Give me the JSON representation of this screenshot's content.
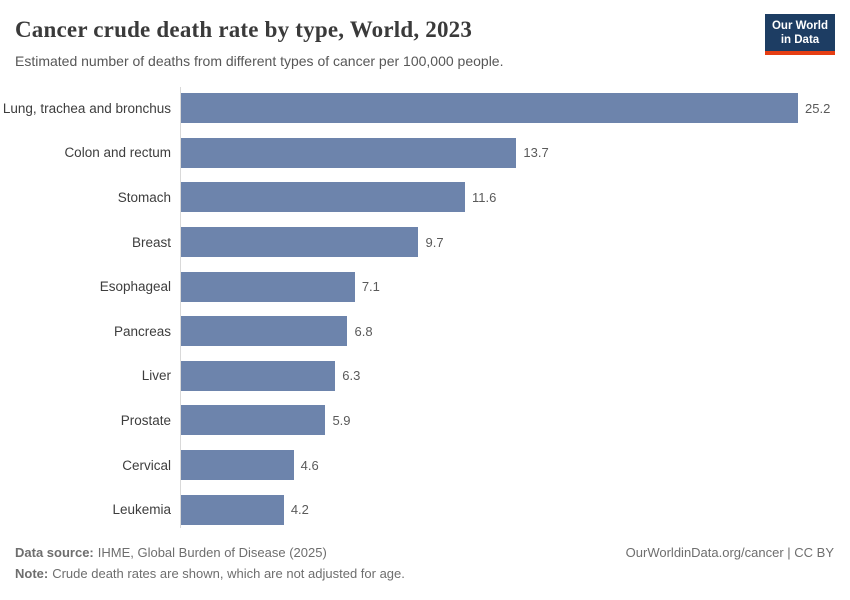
{
  "header": {
    "title": "Cancer crude death rate by type, World, 2023",
    "subtitle": "Estimated number of deaths from different types of cancer per 100,000 people.",
    "logo_line1": "Our World",
    "logo_line2": "in Data"
  },
  "chart_data": {
    "type": "bar",
    "orientation": "horizontal",
    "title": "Cancer crude death rate by type, World, 2023",
    "subtitle": "Estimated number of deaths from different types of cancer per 100,000 people.",
    "entity": "World",
    "year": 2023,
    "categories": [
      "Lung, trachea and bronchus",
      "Colon and rectum",
      "Stomach",
      "Breast",
      "Esophageal",
      "Pancreas",
      "Liver",
      "Prostate",
      "Cervical",
      "Leukemia"
    ],
    "values": [
      25.2,
      13.7,
      11.6,
      9.7,
      7.1,
      6.8,
      6.3,
      5.9,
      4.6,
      4.2
    ],
    "value_labels": [
      "25.2",
      "13.7",
      "11.6",
      "9.7",
      "7.1",
      "6.8",
      "6.3",
      "5.9",
      "4.6",
      "4.2"
    ],
    "xlim": [
      0,
      25.2
    ],
    "grid": false,
    "legend": "none"
  },
  "footer": {
    "source_label": "Data source:",
    "source_text": "IHME, Global Burden of Disease (2025)",
    "note_label": "Note:",
    "note_text": "Crude death rates are shown, which are not adjusted for age.",
    "rights": "OurWorldinData.org/cancer | CC BY"
  },
  "colors": {
    "bar": "#6d84ac",
    "logo_bg": "#1d3d63",
    "logo_stripe": "#e63e13",
    "axis_line": "#d9d9d9",
    "title_text": "#3a3a3a",
    "muted_text": "#6e6e6e"
  }
}
